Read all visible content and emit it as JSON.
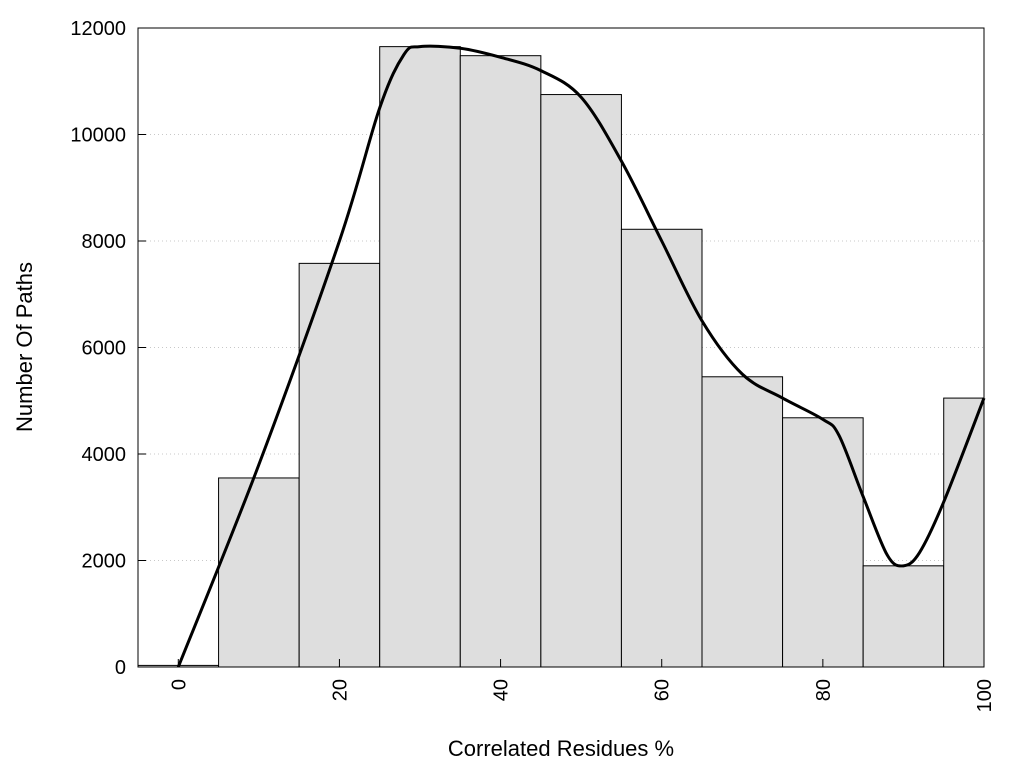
{
  "chart_data": {
    "type": "bar",
    "subtype": "histogram-with-smoothed-line",
    "xlabel": "Correlated Residues %",
    "ylabel": "Number Of Paths",
    "xlim": [
      -5,
      100
    ],
    "ylim": [
      0,
      12000
    ],
    "x_ticks": [
      0,
      20,
      40,
      60,
      80,
      100
    ],
    "y_ticks": [
      0,
      2000,
      4000,
      6000,
      8000,
      10000,
      12000
    ],
    "x_tick_rotation": "vertical",
    "grid": "horizontal dotted",
    "bar_color": "#dedede",
    "line_color": "#000000",
    "bars": [
      {
        "x": 0,
        "value": 30
      },
      {
        "x": 10,
        "value": 3550
      },
      {
        "x": 20,
        "value": 7580
      },
      {
        "x": 30,
        "value": 11650
      },
      {
        "x": 40,
        "value": 11480
      },
      {
        "x": 50,
        "value": 10750
      },
      {
        "x": 60,
        "value": 8220
      },
      {
        "x": 70,
        "value": 5450
      },
      {
        "x": 80,
        "value": 4680
      },
      {
        "x": 90,
        "value": 1900
      },
      {
        "x": 100,
        "value": 5050
      }
    ],
    "bin_width": 10,
    "smoothed_line": {
      "x": [
        0,
        10,
        20,
        25,
        28,
        30,
        35,
        40,
        45,
        50,
        55,
        60,
        65,
        70,
        75,
        80,
        82,
        85,
        88,
        90,
        92,
        95,
        100
      ],
      "y": [
        0,
        3800,
        8000,
        10500,
        11500,
        11650,
        11620,
        11450,
        11200,
        10700,
        9500,
        8000,
        6500,
        5500,
        5050,
        4650,
        4350,
        3200,
        2100,
        1900,
        2150,
        3100,
        5050
      ]
    }
  }
}
